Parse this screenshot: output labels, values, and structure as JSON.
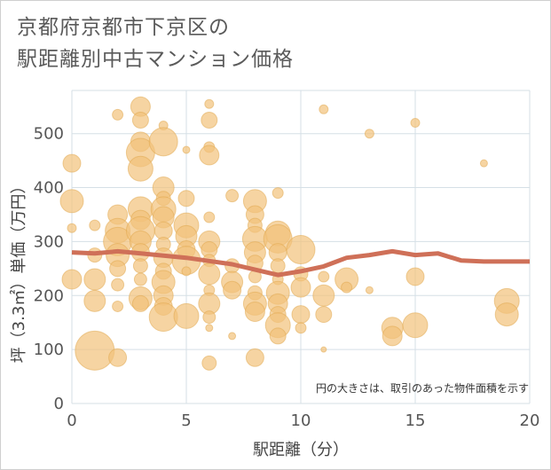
{
  "title": {
    "line1": "京都府京都市下京区の",
    "line2": "駅距離別中古マンション価格"
  },
  "colors": {
    "bubble_fill": "#f2c27a",
    "bubble_stroke": "#e0a64a",
    "line": "#cf7058",
    "grid": "#d5dfe6"
  },
  "chart_data": {
    "type": "scatter",
    "xlabel": "駅距離（分）",
    "ylabel": "坪（3.3㎡）単価（万円）",
    "xlim": [
      0,
      20
    ],
    "ylim": [
      0,
      580
    ],
    "xticks": [
      0,
      5,
      10,
      15,
      20
    ],
    "yticks": [
      0,
      100,
      200,
      300,
      400,
      500
    ],
    "grid": true,
    "annotation": "円の大きさは、取引のあった物件面積を示す",
    "bubbles": [
      {
        "x": 0,
        "y": 445,
        "s": 10
      },
      {
        "x": 0,
        "y": 375,
        "s": 13
      },
      {
        "x": 0,
        "y": 325,
        "s": 5
      },
      {
        "x": 0,
        "y": 230,
        "s": 11
      },
      {
        "x": 1,
        "y": 275,
        "s": 8
      },
      {
        "x": 1,
        "y": 230,
        "s": 12
      },
      {
        "x": 1,
        "y": 190,
        "s": 12
      },
      {
        "x": 1,
        "y": 98,
        "s": 22
      },
      {
        "x": 1,
        "y": 330,
        "s": 6
      },
      {
        "x": 2,
        "y": 535,
        "s": 6
      },
      {
        "x": 2,
        "y": 350,
        "s": 11
      },
      {
        "x": 2,
        "y": 320,
        "s": 14
      },
      {
        "x": 2,
        "y": 300,
        "s": 16
      },
      {
        "x": 2,
        "y": 275,
        "s": 13
      },
      {
        "x": 2,
        "y": 250,
        "s": 9
      },
      {
        "x": 2,
        "y": 220,
        "s": 7
      },
      {
        "x": 2,
        "y": 85,
        "s": 10
      },
      {
        "x": 2,
        "y": 180,
        "s": 6
      },
      {
        "x": 3,
        "y": 550,
        "s": 11
      },
      {
        "x": 3,
        "y": 525,
        "s": 9
      },
      {
        "x": 3,
        "y": 485,
        "s": 11
      },
      {
        "x": 3,
        "y": 465,
        "s": 16
      },
      {
        "x": 3,
        "y": 435,
        "s": 14
      },
      {
        "x": 3,
        "y": 360,
        "s": 14
      },
      {
        "x": 3,
        "y": 340,
        "s": 11
      },
      {
        "x": 3,
        "y": 320,
        "s": 16
      },
      {
        "x": 3,
        "y": 300,
        "s": 12
      },
      {
        "x": 3,
        "y": 280,
        "s": 10
      },
      {
        "x": 3,
        "y": 255,
        "s": 8
      },
      {
        "x": 3,
        "y": 230,
        "s": 7
      },
      {
        "x": 3,
        "y": 195,
        "s": 13
      },
      {
        "x": 3,
        "y": 185,
        "s": 9
      },
      {
        "x": 4,
        "y": 515,
        "s": 5
      },
      {
        "x": 4,
        "y": 485,
        "s": 16
      },
      {
        "x": 4,
        "y": 400,
        "s": 12
      },
      {
        "x": 4,
        "y": 380,
        "s": 8
      },
      {
        "x": 4,
        "y": 360,
        "s": 14
      },
      {
        "x": 4,
        "y": 345,
        "s": 12
      },
      {
        "x": 4,
        "y": 320,
        "s": 10
      },
      {
        "x": 4,
        "y": 295,
        "s": 8
      },
      {
        "x": 4,
        "y": 270,
        "s": 11
      },
      {
        "x": 4,
        "y": 245,
        "s": 9
      },
      {
        "x": 4,
        "y": 225,
        "s": 13
      },
      {
        "x": 4,
        "y": 200,
        "s": 11
      },
      {
        "x": 4,
        "y": 180,
        "s": 10
      },
      {
        "x": 4,
        "y": 160,
        "s": 16
      },
      {
        "x": 5,
        "y": 470,
        "s": 4
      },
      {
        "x": 5,
        "y": 380,
        "s": 9
      },
      {
        "x": 5,
        "y": 330,
        "s": 14
      },
      {
        "x": 5,
        "y": 310,
        "s": 12
      },
      {
        "x": 5,
        "y": 285,
        "s": 10
      },
      {
        "x": 5,
        "y": 265,
        "s": 16
      },
      {
        "x": 5,
        "y": 245,
        "s": 5
      },
      {
        "x": 5,
        "y": 162,
        "s": 14
      },
      {
        "x": 6,
        "y": 555,
        "s": 5
      },
      {
        "x": 6,
        "y": 525,
        "s": 9
      },
      {
        "x": 6,
        "y": 475,
        "s": 6
      },
      {
        "x": 6,
        "y": 460,
        "s": 11
      },
      {
        "x": 6,
        "y": 345,
        "s": 6
      },
      {
        "x": 6,
        "y": 300,
        "s": 12
      },
      {
        "x": 6,
        "y": 285,
        "s": 9
      },
      {
        "x": 6,
        "y": 265,
        "s": 7
      },
      {
        "x": 6,
        "y": 240,
        "s": 12
      },
      {
        "x": 6,
        "y": 210,
        "s": 6
      },
      {
        "x": 6,
        "y": 185,
        "s": 12
      },
      {
        "x": 6,
        "y": 160,
        "s": 7
      },
      {
        "x": 6,
        "y": 140,
        "s": 4
      },
      {
        "x": 6,
        "y": 75,
        "s": 8
      },
      {
        "x": 7,
        "y": 385,
        "s": 7
      },
      {
        "x": 7,
        "y": 255,
        "s": 8
      },
      {
        "x": 7,
        "y": 225,
        "s": 12
      },
      {
        "x": 7,
        "y": 210,
        "s": 10
      },
      {
        "x": 7,
        "y": 125,
        "s": 4
      },
      {
        "x": 8,
        "y": 375,
        "s": 13
      },
      {
        "x": 8,
        "y": 350,
        "s": 10
      },
      {
        "x": 8,
        "y": 330,
        "s": 8
      },
      {
        "x": 8,
        "y": 305,
        "s": 14
      },
      {
        "x": 8,
        "y": 280,
        "s": 12
      },
      {
        "x": 8,
        "y": 260,
        "s": 9
      },
      {
        "x": 8,
        "y": 235,
        "s": 7
      },
      {
        "x": 8,
        "y": 205,
        "s": 8
      },
      {
        "x": 8,
        "y": 185,
        "s": 13
      },
      {
        "x": 8,
        "y": 170,
        "s": 11
      },
      {
        "x": 8,
        "y": 85,
        "s": 10
      },
      {
        "x": 9,
        "y": 390,
        "s": 6
      },
      {
        "x": 9,
        "y": 315,
        "s": 14
      },
      {
        "x": 9,
        "y": 305,
        "s": 16
      },
      {
        "x": 9,
        "y": 280,
        "s": 10
      },
      {
        "x": 9,
        "y": 255,
        "s": 8
      },
      {
        "x": 9,
        "y": 230,
        "s": 6
      },
      {
        "x": 9,
        "y": 205,
        "s": 13
      },
      {
        "x": 9,
        "y": 185,
        "s": 11
      },
      {
        "x": 9,
        "y": 165,
        "s": 9
      },
      {
        "x": 9,
        "y": 145,
        "s": 14
      },
      {
        "x": 9,
        "y": 125,
        "s": 9
      },
      {
        "x": 10,
        "y": 285,
        "s": 16
      },
      {
        "x": 10,
        "y": 240,
        "s": 8
      },
      {
        "x": 10,
        "y": 215,
        "s": 11
      },
      {
        "x": 10,
        "y": 165,
        "s": 10
      },
      {
        "x": 10,
        "y": 140,
        "s": 6
      },
      {
        "x": 11,
        "y": 545,
        "s": 5
      },
      {
        "x": 11,
        "y": 235,
        "s": 6
      },
      {
        "x": 11,
        "y": 200,
        "s": 12
      },
      {
        "x": 11,
        "y": 165,
        "s": 9
      },
      {
        "x": 11,
        "y": 100,
        "s": 3
      },
      {
        "x": 12,
        "y": 230,
        "s": 13
      },
      {
        "x": 12,
        "y": 215,
        "s": 6
      },
      {
        "x": 13,
        "y": 500,
        "s": 5
      },
      {
        "x": 13,
        "y": 210,
        "s": 4
      },
      {
        "x": 14,
        "y": 140,
        "s": 12
      },
      {
        "x": 14,
        "y": 125,
        "s": 11
      },
      {
        "x": 15,
        "y": 520,
        "s": 5
      },
      {
        "x": 15,
        "y": 235,
        "s": 10
      },
      {
        "x": 15,
        "y": 145,
        "s": 14
      },
      {
        "x": 18,
        "y": 445,
        "s": 4
      },
      {
        "x": 19,
        "y": 190,
        "s": 14
      },
      {
        "x": 19,
        "y": 165,
        "s": 13
      }
    ],
    "trend": {
      "x": [
        0,
        1,
        2,
        3,
        4,
        5,
        6,
        7,
        8,
        9,
        10,
        11,
        12,
        13,
        14,
        15,
        16,
        17,
        18,
        19,
        20
      ],
      "y": [
        280,
        278,
        282,
        278,
        274,
        270,
        264,
        258,
        248,
        238,
        245,
        254,
        270,
        275,
        282,
        275,
        278,
        265,
        263,
        263,
        263
      ]
    }
  }
}
